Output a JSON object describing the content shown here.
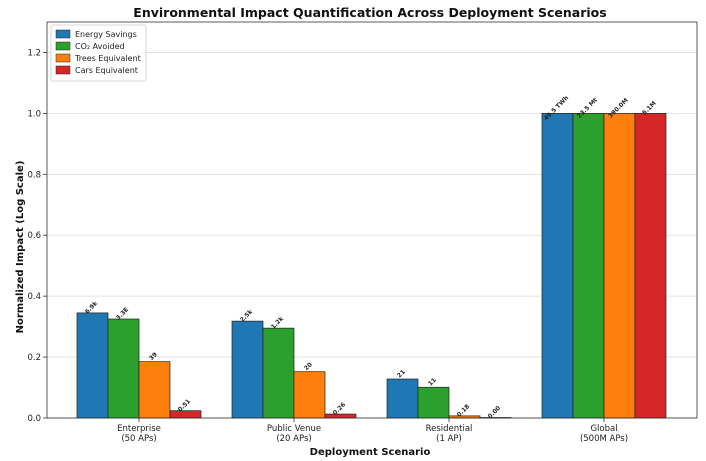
{
  "chart_data": {
    "type": "bar",
    "title": "Environmental Impact Quantification Across Deployment Scenarios",
    "xlabel": "Deployment Scenario",
    "ylabel": "Normalized Impact (Log Scale)",
    "ylim": [
      0,
      1.3
    ],
    "yticks": [
      "0.0",
      "0.2",
      "0.4",
      "0.6",
      "0.8",
      "1.0",
      "1.2"
    ],
    "grid": true,
    "legend_position": "top-left",
    "categories": [
      [
        "Enterprise",
        "(50 APs)"
      ],
      [
        "Public Venue",
        "(20 APs)"
      ],
      [
        "Residential",
        "(1 AP)"
      ],
      [
        "Global",
        "(500M APs)"
      ]
    ],
    "series": [
      {
        "name": "Energy Savings",
        "color": "#1f77b4",
        "values": [
          0.345,
          0.318,
          0.128,
          1.0
        ],
        "labels": [
          "6.9k",
          "2.5k",
          "21",
          "49.5 TWh"
        ]
      },
      {
        "name": "CO₂ Avoided",
        "color": "#2ca02c",
        "values": [
          0.325,
          0.295,
          0.101,
          1.0
        ],
        "labels": [
          "3.3E",
          "1.2k",
          "11",
          "23.5 Mt"
        ]
      },
      {
        "name": "Trees Equivalent",
        "color": "#ff7f0e",
        "values": [
          0.185,
          0.152,
          0.007,
          1.0
        ],
        "labels": [
          "39",
          "20",
          "0.18",
          "390.0M"
        ]
      },
      {
        "name": "Cars Equivalent",
        "color": "#d62728",
        "values": [
          0.024,
          0.013,
          0.001,
          1.0
        ],
        "labels": [
          "0.51",
          "0.26",
          "0.00",
          "5.1M"
        ]
      }
    ]
  }
}
